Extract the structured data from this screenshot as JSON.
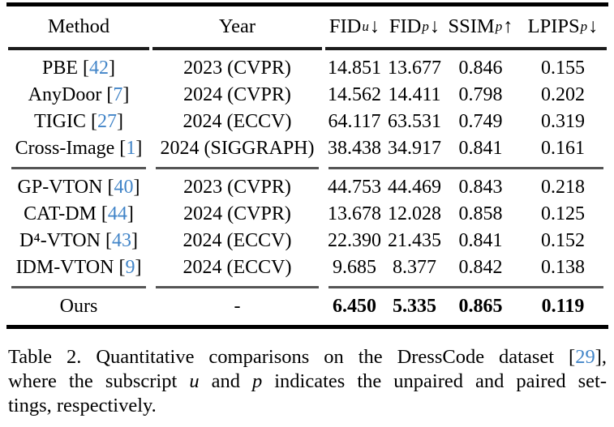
{
  "colors": {
    "citation_blue": "#4285c8",
    "rule_black": "#000000",
    "rule_gray": "#555555"
  },
  "table": {
    "columns": [
      {
        "key": "method",
        "label": "Method"
      },
      {
        "key": "year",
        "label": "Year"
      },
      {
        "key": "fid_u",
        "base": "FID",
        "sub": "u",
        "arrow": "↓"
      },
      {
        "key": "fid_p",
        "base": "FID",
        "sub": "p",
        "arrow": "↓"
      },
      {
        "key": "ssim_p",
        "base": "SSIM",
        "sub": "p",
        "arrow": "↑"
      },
      {
        "key": "lpips_p",
        "base": "LPIPS",
        "sub": "p",
        "arrow": "↓"
      }
    ],
    "groups": [
      {
        "rows": [
          {
            "method": "PBE",
            "cite": "42",
            "year": "2023 (CVPR)",
            "values": [
              "14.851",
              "13.677",
              "0.846",
              "0.155"
            ]
          },
          {
            "method": "AnyDoor",
            "cite": "7",
            "year": "2024 (CVPR)",
            "values": [
              "14.562",
              "14.411",
              "0.798",
              "0.202"
            ]
          },
          {
            "method": "TIGIC",
            "cite": "27",
            "year": "2024 (ECCV)",
            "values": [
              "64.117",
              "63.531",
              "0.749",
              "0.319"
            ]
          },
          {
            "method": "Cross-Image",
            "cite": "1",
            "year": "2024 (SIGGRAPH)",
            "values": [
              "38.438",
              "34.917",
              "0.841",
              "0.161"
            ]
          }
        ]
      },
      {
        "rows": [
          {
            "method": "GP-VTON",
            "cite": "40",
            "year": "2023 (CVPR)",
            "values": [
              "44.753",
              "44.469",
              "0.843",
              "0.218"
            ]
          },
          {
            "method": "CAT-DM",
            "cite": "44",
            "year": "2024 (CVPR)",
            "values": [
              "13.678",
              "12.028",
              "0.858",
              "0.125"
            ]
          },
          {
            "method": "D⁴-VTON",
            "cite": "43",
            "year": "2024 (ECCV)",
            "values": [
              "22.390",
              "21.435",
              "0.841",
              "0.152"
            ]
          },
          {
            "method": "IDM-VTON",
            "cite": "9",
            "year": "2024 (ECCV)",
            "values": [
              "9.685",
              "8.377",
              "0.842",
              "0.138"
            ]
          }
        ]
      },
      {
        "rows": [
          {
            "method": "Ours",
            "cite": null,
            "year": "-",
            "values": [
              "6.450",
              "5.335",
              "0.865",
              "0.119"
            ],
            "bold_values": true
          }
        ]
      }
    ]
  },
  "caption": {
    "lines": [
      {
        "justify": true,
        "segments": [
          {
            "t": "Table 2. Quantitative comparisons on the DressCode dataset ["
          },
          {
            "t": "29",
            "s": "cite"
          },
          {
            "t": "],"
          }
        ]
      },
      {
        "justify": true,
        "segments": [
          {
            "t": "where the subscript "
          },
          {
            "t": "u",
            "s": "i"
          },
          {
            "t": " and "
          },
          {
            "t": "p",
            "s": "i"
          },
          {
            "t": " indicates the unpaired and paired set-"
          }
        ]
      },
      {
        "justify": false,
        "segments": [
          {
            "t": "tings, respectively."
          }
        ]
      }
    ]
  }
}
